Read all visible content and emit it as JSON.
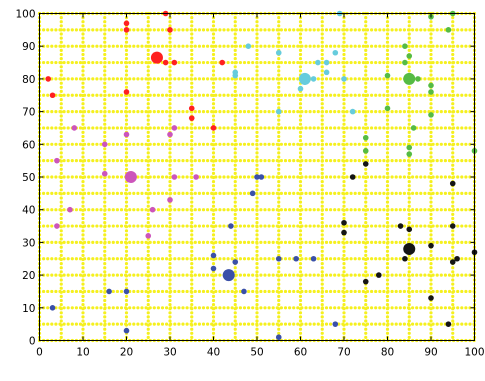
{
  "chart_data": {
    "type": "scatter",
    "title": "",
    "xlabel": "",
    "ylabel": "",
    "xlim": [
      0,
      100
    ],
    "ylim": [
      0,
      100
    ],
    "x_ticks": [
      0,
      10,
      20,
      30,
      40,
      50,
      60,
      70,
      80,
      90,
      100
    ],
    "y_ticks": [
      0,
      10,
      20,
      30,
      40,
      50,
      60,
      70,
      80,
      90,
      100
    ],
    "x_tick_labels": [
      "0",
      "10",
      "20",
      "30",
      "40",
      "50",
      "60",
      "70",
      "80",
      "90",
      "100"
    ],
    "y_tick_labels": [
      "0",
      "10",
      "20",
      "30",
      "40",
      "50",
      "60",
      "70",
      "80",
      "90",
      "100"
    ],
    "background_grid": {
      "color": "#f5f01e",
      "x": [
        0,
        5,
        10,
        15,
        20,
        25,
        30,
        35,
        40,
        45,
        50,
        55,
        60,
        65,
        70,
        75,
        80,
        85,
        90,
        95,
        100
      ],
      "y": [
        0,
        5,
        10,
        15,
        20,
        25,
        30,
        35,
        40,
        45,
        50,
        55,
        60,
        65,
        70,
        75,
        80,
        85,
        90,
        95,
        100
      ]
    },
    "series": [
      {
        "color": "#ff2020",
        "centroid": [
          27,
          86.5
        ],
        "points": [
          [
            2,
            80
          ],
          [
            3,
            75
          ],
          [
            20,
            97
          ],
          [
            20,
            95
          ],
          [
            20,
            76
          ],
          [
            29,
            100
          ],
          [
            30,
            95
          ],
          [
            29,
            85
          ],
          [
            31,
            85
          ],
          [
            42,
            85
          ],
          [
            35,
            71
          ],
          [
            35,
            68
          ],
          [
            40,
            65
          ]
        ]
      },
      {
        "color": "#cc55bb",
        "centroid": [
          21,
          50
        ],
        "points": [
          [
            4,
            55
          ],
          [
            4,
            35
          ],
          [
            8,
            65
          ],
          [
            7,
            40
          ],
          [
            15,
            60
          ],
          [
            15,
            51
          ],
          [
            20,
            63
          ],
          [
            25,
            32
          ],
          [
            26,
            40
          ],
          [
            30,
            63
          ],
          [
            31,
            65
          ],
          [
            31,
            50
          ],
          [
            30,
            43
          ],
          [
            36,
            50
          ]
        ]
      },
      {
        "color": "#66ccdd",
        "centroid": [
          61,
          80
        ],
        "points": [
          [
            48,
            90
          ],
          [
            45,
            82
          ],
          [
            45,
            81
          ],
          [
            55,
            88
          ],
          [
            60,
            77
          ],
          [
            61,
            79
          ],
          [
            63,
            80
          ],
          [
            64,
            85
          ],
          [
            66,
            85
          ],
          [
            66,
            82
          ],
          [
            68,
            88
          ],
          [
            69,
            100
          ],
          [
            70,
            80
          ],
          [
            72,
            70
          ],
          [
            55,
            70
          ]
        ]
      },
      {
        "color": "#55bb44",
        "centroid": [
          85,
          80
        ],
        "points": [
          [
            75,
            58
          ],
          [
            75,
            62
          ],
          [
            80,
            71
          ],
          [
            80,
            81
          ],
          [
            84,
            90
          ],
          [
            84,
            85
          ],
          [
            85,
            87
          ],
          [
            85,
            59
          ],
          [
            85,
            57
          ],
          [
            86,
            65
          ],
          [
            87,
            80
          ],
          [
            90,
            99
          ],
          [
            90,
            78
          ],
          [
            90,
            76
          ],
          [
            90,
            69
          ],
          [
            94,
            95
          ],
          [
            95,
            100
          ],
          [
            100,
            58
          ]
        ]
      },
      {
        "color": "#3a50a8",
        "centroid": [
          43.5,
          20
        ],
        "points": [
          [
            3,
            10
          ],
          [
            16,
            15
          ],
          [
            20,
            15
          ],
          [
            20,
            3
          ],
          [
            40,
            26
          ],
          [
            40,
            22
          ],
          [
            44,
            35
          ],
          [
            45,
            24
          ],
          [
            47,
            15
          ],
          [
            49,
            45
          ],
          [
            50,
            50
          ],
          [
            51,
            50
          ],
          [
            55,
            25
          ],
          [
            55,
            1
          ],
          [
            59,
            25
          ],
          [
            63,
            25
          ],
          [
            68,
            5
          ]
        ]
      },
      {
        "color": "#151515",
        "centroid": [
          85,
          28
        ],
        "points": [
          [
            70,
            36
          ],
          [
            70,
            33
          ],
          [
            72,
            50
          ],
          [
            75,
            54
          ],
          [
            75,
            18
          ],
          [
            78,
            20
          ],
          [
            83,
            35
          ],
          [
            84,
            25
          ],
          [
            85,
            34
          ],
          [
            90,
            29
          ],
          [
            90,
            13
          ],
          [
            94,
            5
          ],
          [
            95,
            48
          ],
          [
            95,
            35
          ],
          [
            95,
            24
          ],
          [
            96,
            25
          ],
          [
            100,
            27
          ]
        ]
      }
    ]
  }
}
